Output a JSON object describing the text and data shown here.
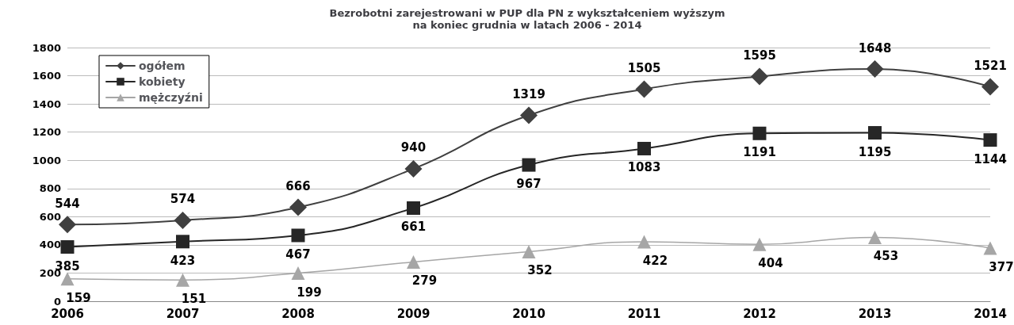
{
  "chart_data": {
    "type": "line",
    "title": "Bezrobotni zarejestrowani w PUP dla PN z wykształceniem wyższym\nna koniec grudnia w latach 2006 - 2014",
    "categories": [
      "2006",
      "2007",
      "2008",
      "2009",
      "2010",
      "2011",
      "2012",
      "2013",
      "2014"
    ],
    "series": [
      {
        "name": "ogółem",
        "color": "#404040",
        "marker": "diamond",
        "values": [
          544,
          574,
          666,
          940,
          1319,
          1505,
          1595,
          1648,
          1521
        ]
      },
      {
        "name": "kobiety",
        "color": "#262626",
        "marker": "square",
        "values": [
          385,
          423,
          467,
          661,
          967,
          1083,
          1191,
          1195,
          1144
        ]
      },
      {
        "name": "mężczyźni",
        "color": "#a6a6a6",
        "marker": "triangle",
        "values": [
          159,
          151,
          199,
          279,
          352,
          422,
          404,
          453,
          377
        ]
      }
    ],
    "ylim": [
      0,
      1800
    ],
    "yticks": [
      0,
      200,
      400,
      600,
      800,
      1000,
      1200,
      1400,
      1600,
      1800
    ],
    "grid": "y",
    "legend": "top left",
    "data_labels": true,
    "line_style": "solid"
  }
}
